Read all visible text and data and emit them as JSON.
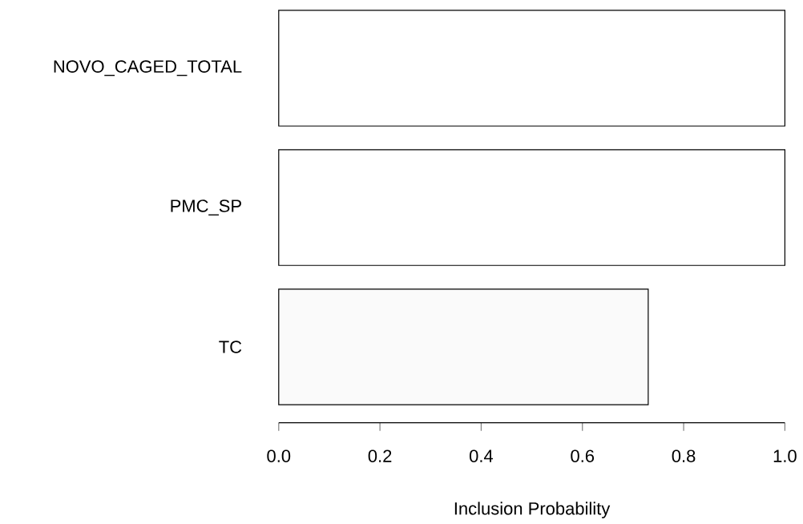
{
  "chart_data": {
    "type": "bar",
    "orientation": "horizontal",
    "categories": [
      "NOVO_CAGED_TOTAL",
      "PMC_SP",
      "TC"
    ],
    "values": [
      1,
      1,
      0.73
    ],
    "colors": [
      "#ffffff",
      "#ffffff",
      "#fafafa"
    ],
    "xlabel": "Inclusion Probability",
    "xlim": [
      0,
      1
    ],
    "xticks": [
      {
        "value": 0,
        "label": "0.0"
      },
      {
        "value": 0.2,
        "label": "0.2"
      },
      {
        "value": 0.4,
        "label": "0.4"
      },
      {
        "value": 0.6,
        "label": "0.6"
      },
      {
        "value": 0.8,
        "label": "0.8"
      },
      {
        "value": 1,
        "label": "1.0"
      }
    ]
  }
}
